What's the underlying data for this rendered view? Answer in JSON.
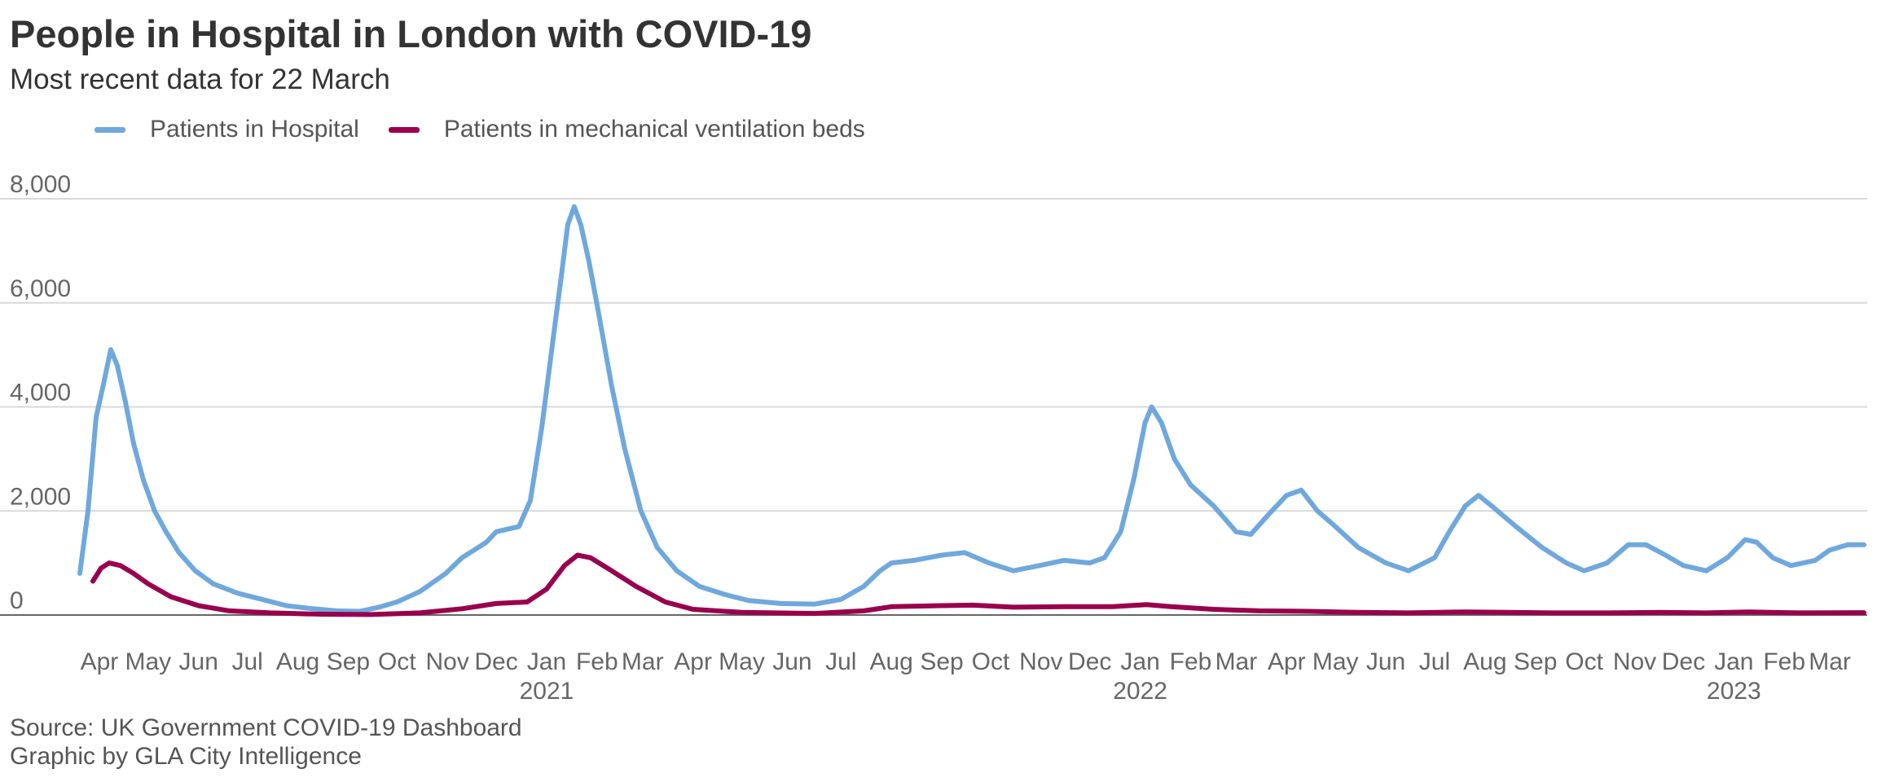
{
  "title": "People in Hospital in London with COVID-19",
  "subtitle": "Most recent data for 22 March",
  "footer": {
    "source": "Source: UK Government COVID-19 Dashboard",
    "credit": "Graphic by GLA City Intelligence"
  },
  "colors": {
    "hospital": "#6fa8dc",
    "ventilation": "#99004d",
    "grid": "#d9d9d9",
    "axis": "#666666"
  },
  "chart_data": {
    "type": "line",
    "x_start": "2020-03-20",
    "x_end": "2023-03-22",
    "ylim": [
      0,
      8000
    ],
    "y_ticks": [
      {
        "value": 0,
        "label": "0"
      },
      {
        "value": 2000,
        "label": "2,000"
      },
      {
        "value": 4000,
        "label": "4,000"
      },
      {
        "value": 6000,
        "label": "6,000"
      },
      {
        "value": 8000,
        "label": "8,000"
      }
    ],
    "x_month_ticks": [
      {
        "date": "2020-04-01",
        "label": "Apr"
      },
      {
        "date": "2020-05-01",
        "label": "May"
      },
      {
        "date": "2020-06-01",
        "label": "Jun"
      },
      {
        "date": "2020-07-01",
        "label": "Jul"
      },
      {
        "date": "2020-08-01",
        "label": "Aug"
      },
      {
        "date": "2020-09-01",
        "label": "Sep"
      },
      {
        "date": "2020-10-01",
        "label": "Oct"
      },
      {
        "date": "2020-11-01",
        "label": "Nov"
      },
      {
        "date": "2020-12-01",
        "label": "Dec"
      },
      {
        "date": "2021-01-01",
        "label": "Jan"
      },
      {
        "date": "2021-02-01",
        "label": "Feb"
      },
      {
        "date": "2021-03-01",
        "label": "Mar"
      },
      {
        "date": "2021-04-01",
        "label": "Apr"
      },
      {
        "date": "2021-05-01",
        "label": "May"
      },
      {
        "date": "2021-06-01",
        "label": "Jun"
      },
      {
        "date": "2021-07-01",
        "label": "Jul"
      },
      {
        "date": "2021-08-01",
        "label": "Aug"
      },
      {
        "date": "2021-09-01",
        "label": "Sep"
      },
      {
        "date": "2021-10-01",
        "label": "Oct"
      },
      {
        "date": "2021-11-01",
        "label": "Nov"
      },
      {
        "date": "2021-12-01",
        "label": "Dec"
      },
      {
        "date": "2022-01-01",
        "label": "Jan"
      },
      {
        "date": "2022-02-01",
        "label": "Feb"
      },
      {
        "date": "2022-03-01",
        "label": "Mar"
      },
      {
        "date": "2022-04-01",
        "label": "Apr"
      },
      {
        "date": "2022-05-01",
        "label": "May"
      },
      {
        "date": "2022-06-01",
        "label": "Jun"
      },
      {
        "date": "2022-07-01",
        "label": "Jul"
      },
      {
        "date": "2022-08-01",
        "label": "Aug"
      },
      {
        "date": "2022-09-01",
        "label": "Sep"
      },
      {
        "date": "2022-10-01",
        "label": "Oct"
      },
      {
        "date": "2022-11-01",
        "label": "Nov"
      },
      {
        "date": "2022-12-01",
        "label": "Dec"
      },
      {
        "date": "2023-01-01",
        "label": "Jan"
      },
      {
        "date": "2023-02-01",
        "label": "Feb"
      },
      {
        "date": "2023-03-01",
        "label": "Mar"
      }
    ],
    "x_year_ticks": [
      {
        "date": "2021-01-01",
        "label": "2021"
      },
      {
        "date": "2022-01-01",
        "label": "2022"
      },
      {
        "date": "2023-01-01",
        "label": "2023"
      }
    ],
    "series": [
      {
        "name": "Patients in Hospital",
        "color": "#6fa8dc",
        "points": [
          [
            "2020-03-20",
            800
          ],
          [
            "2020-03-25",
            2000
          ],
          [
            "2020-03-30",
            3800
          ],
          [
            "2020-04-04",
            4500
          ],
          [
            "2020-04-08",
            5100
          ],
          [
            "2020-04-12",
            4800
          ],
          [
            "2020-04-17",
            4100
          ],
          [
            "2020-04-22",
            3300
          ],
          [
            "2020-04-28",
            2600
          ],
          [
            "2020-05-05",
            2000
          ],
          [
            "2020-05-12",
            1600
          ],
          [
            "2020-05-20",
            1200
          ],
          [
            "2020-05-30",
            850
          ],
          [
            "2020-06-10",
            600
          ],
          [
            "2020-06-25",
            420
          ],
          [
            "2020-07-10",
            300
          ],
          [
            "2020-07-25",
            180
          ],
          [
            "2020-08-10",
            120
          ],
          [
            "2020-08-25",
            80
          ],
          [
            "2020-09-08",
            70
          ],
          [
            "2020-09-20",
            150
          ],
          [
            "2020-10-01",
            250
          ],
          [
            "2020-10-15",
            450
          ],
          [
            "2020-10-31",
            800
          ],
          [
            "2020-11-10",
            1100
          ],
          [
            "2020-11-25",
            1400
          ],
          [
            "2020-12-01",
            1600
          ],
          [
            "2020-12-15",
            1700
          ],
          [
            "2020-12-22",
            2200
          ],
          [
            "2020-12-29",
            3600
          ],
          [
            "2021-01-05",
            5300
          ],
          [
            "2021-01-10",
            6500
          ],
          [
            "2021-01-14",
            7500
          ],
          [
            "2021-01-18",
            7850
          ],
          [
            "2021-01-22",
            7500
          ],
          [
            "2021-01-27",
            6800
          ],
          [
            "2021-02-02",
            5800
          ],
          [
            "2021-02-10",
            4400
          ],
          [
            "2021-02-18",
            3200
          ],
          [
            "2021-02-28",
            2000
          ],
          [
            "2021-03-10",
            1300
          ],
          [
            "2021-03-22",
            850
          ],
          [
            "2021-04-05",
            550
          ],
          [
            "2021-04-20",
            400
          ],
          [
            "2021-05-05",
            280
          ],
          [
            "2021-05-25",
            220
          ],
          [
            "2021-06-15",
            210
          ],
          [
            "2021-07-01",
            300
          ],
          [
            "2021-07-15",
            550
          ],
          [
            "2021-07-25",
            850
          ],
          [
            "2021-08-01",
            1000
          ],
          [
            "2021-08-15",
            1050
          ],
          [
            "2021-09-01",
            1150
          ],
          [
            "2021-09-15",
            1200
          ],
          [
            "2021-09-30",
            1000
          ],
          [
            "2021-10-15",
            850
          ],
          [
            "2021-10-31",
            950
          ],
          [
            "2021-11-15",
            1050
          ],
          [
            "2021-12-01",
            1000
          ],
          [
            "2021-12-10",
            1100
          ],
          [
            "2021-12-20",
            1600
          ],
          [
            "2021-12-28",
            2600
          ],
          [
            "2022-01-04",
            3700
          ],
          [
            "2022-01-08",
            4000
          ],
          [
            "2022-01-14",
            3700
          ],
          [
            "2022-01-22",
            3000
          ],
          [
            "2022-02-01",
            2500
          ],
          [
            "2022-02-15",
            2100
          ],
          [
            "2022-03-01",
            1600
          ],
          [
            "2022-03-10",
            1550
          ],
          [
            "2022-03-20",
            1900
          ],
          [
            "2022-04-01",
            2300
          ],
          [
            "2022-04-10",
            2400
          ],
          [
            "2022-04-20",
            2000
          ],
          [
            "2022-05-01",
            1700
          ],
          [
            "2022-05-15",
            1300
          ],
          [
            "2022-06-01",
            1000
          ],
          [
            "2022-06-15",
            850
          ],
          [
            "2022-07-01",
            1100
          ],
          [
            "2022-07-10",
            1600
          ],
          [
            "2022-07-20",
            2100
          ],
          [
            "2022-07-28",
            2300
          ],
          [
            "2022-08-05",
            2100
          ],
          [
            "2022-08-20",
            1700
          ],
          [
            "2022-09-05",
            1300
          ],
          [
            "2022-09-20",
            1000
          ],
          [
            "2022-10-01",
            850
          ],
          [
            "2022-10-15",
            1000
          ],
          [
            "2022-10-28",
            1350
          ],
          [
            "2022-11-08",
            1350
          ],
          [
            "2022-11-20",
            1150
          ],
          [
            "2022-12-01",
            950
          ],
          [
            "2022-12-15",
            850
          ],
          [
            "2022-12-28",
            1100
          ],
          [
            "2023-01-08",
            1450
          ],
          [
            "2023-01-15",
            1400
          ],
          [
            "2023-01-25",
            1100
          ],
          [
            "2023-02-05",
            950
          ],
          [
            "2023-02-20",
            1050
          ],
          [
            "2023-03-01",
            1250
          ],
          [
            "2023-03-12",
            1350
          ],
          [
            "2023-03-22",
            1350
          ]
        ]
      },
      {
        "name": "Patients in mechanical ventilation beds",
        "color": "#99004d",
        "points": [
          [
            "2020-03-28",
            650
          ],
          [
            "2020-04-02",
            900
          ],
          [
            "2020-04-07",
            1000
          ],
          [
            "2020-04-14",
            950
          ],
          [
            "2020-04-22",
            800
          ],
          [
            "2020-05-01",
            600
          ],
          [
            "2020-05-15",
            350
          ],
          [
            "2020-06-01",
            180
          ],
          [
            "2020-06-20",
            80
          ],
          [
            "2020-07-15",
            40
          ],
          [
            "2020-08-15",
            15
          ],
          [
            "2020-09-15",
            10
          ],
          [
            "2020-10-15",
            40
          ],
          [
            "2020-11-10",
            120
          ],
          [
            "2020-12-01",
            220
          ],
          [
            "2020-12-20",
            250
          ],
          [
            "2021-01-01",
            500
          ],
          [
            "2021-01-12",
            950
          ],
          [
            "2021-01-20",
            1150
          ],
          [
            "2021-01-28",
            1100
          ],
          [
            "2021-02-10",
            850
          ],
          [
            "2021-02-25",
            550
          ],
          [
            "2021-03-15",
            250
          ],
          [
            "2021-04-01",
            110
          ],
          [
            "2021-05-01",
            50
          ],
          [
            "2021-06-15",
            30
          ],
          [
            "2021-07-15",
            80
          ],
          [
            "2021-08-01",
            160
          ],
          [
            "2021-09-01",
            180
          ],
          [
            "2021-09-20",
            190
          ],
          [
            "2021-10-15",
            150
          ],
          [
            "2021-11-15",
            160
          ],
          [
            "2021-12-15",
            160
          ],
          [
            "2022-01-05",
            200
          ],
          [
            "2022-01-20",
            160
          ],
          [
            "2022-02-15",
            110
          ],
          [
            "2022-03-15",
            80
          ],
          [
            "2022-04-15",
            70
          ],
          [
            "2022-05-15",
            50
          ],
          [
            "2022-06-15",
            40
          ],
          [
            "2022-07-20",
            60
          ],
          [
            "2022-08-15",
            50
          ],
          [
            "2022-09-15",
            40
          ],
          [
            "2022-10-15",
            40
          ],
          [
            "2022-11-15",
            50
          ],
          [
            "2022-12-15",
            40
          ],
          [
            "2023-01-10",
            60
          ],
          [
            "2023-02-10",
            40
          ],
          [
            "2023-03-22",
            45
          ]
        ]
      }
    ]
  }
}
